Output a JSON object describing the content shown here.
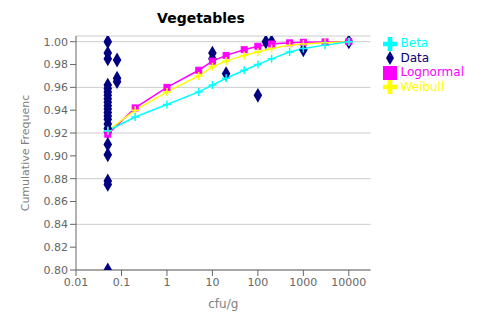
{
  "chart_data": {
    "type": "line",
    "title": "Vegetables",
    "xlabel": "cfu/g",
    "ylabel": "Cumulative Frequenc",
    "log": "x",
    "xlim": [
      0.01,
      30000
    ],
    "xticks": [
      0.01,
      0.1,
      1,
      10,
      100,
      1000,
      10000
    ],
    "ylim": [
      0.8,
      1.005
    ],
    "yticks": [
      {
        "value": 0.8,
        "label": "0.80"
      },
      {
        "value": 0.82,
        "label": "0.82"
      },
      {
        "value": 0.84,
        "label": "0.84"
      },
      {
        "value": 0.86,
        "label": "0.86"
      },
      {
        "value": 0.88,
        "label": "0.88"
      },
      {
        "value": 0.9,
        "label": "0.90"
      },
      {
        "value": 0.92,
        "label": "0.92"
      },
      {
        "value": 0.94,
        "label": "0.94"
      },
      {
        "value": 0.96,
        "label": "0.96"
      },
      {
        "value": 0.98,
        "label": "0.98"
      },
      {
        "value": 1.0,
        "label": "1.00"
      }
    ],
    "grid": "y",
    "legend": "right",
    "series": [
      {
        "name": "Data",
        "type": "scatter",
        "color": "#000080",
        "marker": "diamond",
        "x": [
          0.05,
          0.05,
          0.05,
          0.05,
          0.05,
          0.05,
          0.05,
          0.05,
          0.05,
          0.05,
          0.05,
          0.05,
          0.05,
          0.05,
          0.05,
          0.05,
          0.05,
          0.05,
          0.05,
          0.08,
          0.08,
          0.08,
          0.05,
          0.05,
          0.05,
          10,
          10,
          20,
          100,
          150,
          200,
          1000,
          10000
        ],
        "values": [
          0.8,
          0.875,
          0.878,
          0.901,
          0.91,
          0.921,
          0.924,
          0.928,
          0.932,
          0.935,
          0.938,
          0.941,
          0.944,
          0.947,
          0.95,
          0.953,
          0.956,
          0.959,
          0.962,
          0.965,
          0.968,
          0.984,
          0.985,
          0.99,
          1.0,
          0.99,
          0.985,
          0.972,
          0.953,
          1.0,
          1.0,
          0.993,
          1.0
        ]
      },
      {
        "name": "Lognormal",
        "type": "line",
        "color": "#ff00ff",
        "marker": "square",
        "x": [
          0.05,
          0.2,
          1,
          5,
          10,
          20,
          50,
          100,
          200,
          500,
          1000,
          3000,
          10000
        ],
        "values": [
          0.919,
          0.942,
          0.96,
          0.975,
          0.983,
          0.988,
          0.993,
          0.996,
          0.998,
          0.999,
          0.9995,
          0.9998,
          1.0
        ]
      },
      {
        "name": "Weibull",
        "type": "line",
        "color": "#ffff00",
        "marker": "cross",
        "x": [
          0.05,
          0.2,
          1,
          5,
          10,
          20,
          50,
          100,
          200,
          500,
          1000,
          3000,
          10000
        ],
        "values": [
          0.922,
          0.94,
          0.956,
          0.97,
          0.978,
          0.983,
          0.988,
          0.991,
          0.994,
          0.997,
          0.998,
          0.999,
          1.0
        ]
      },
      {
        "name": "Beta",
        "type": "line",
        "color": "#00ffff",
        "marker": "cross",
        "x": [
          0.05,
          0.2,
          1,
          5,
          10,
          20,
          50,
          100,
          200,
          500,
          1000,
          3000,
          10000
        ],
        "values": [
          0.922,
          0.934,
          0.945,
          0.956,
          0.962,
          0.968,
          0.975,
          0.98,
          0.985,
          0.991,
          0.994,
          0.997,
          1.0
        ]
      }
    ]
  }
}
